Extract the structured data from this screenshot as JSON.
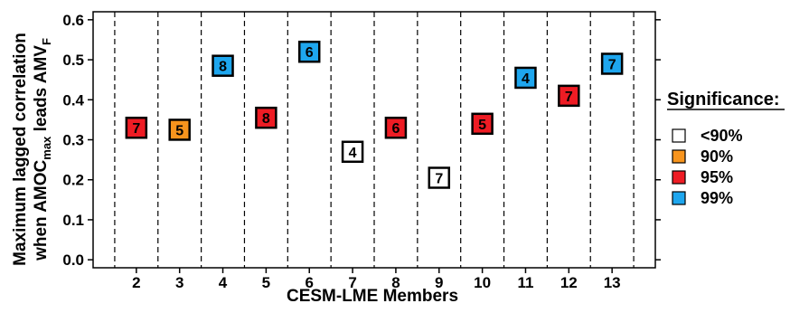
{
  "chart_data": {
    "type": "scatter",
    "title": "",
    "ylabel_line1": "Maximum lagged correlation",
    "ylabel_line2_prefix": "when AMOC",
    "ylabel_line2_sub1": "max",
    "ylabel_line2_mid": " leads AMV",
    "ylabel_line2_sub2": "F",
    "xlabel": "CESM-LME Members",
    "ylim": [
      -0.02,
      0.62
    ],
    "yticks": [
      0.0,
      0.1,
      0.2,
      0.3,
      0.4,
      0.5,
      0.6
    ],
    "ytick_labels": [
      "0.0",
      "0.1",
      "0.2",
      "0.3",
      "0.4",
      "0.5",
      "0.6"
    ],
    "categories": [
      "2",
      "3",
      "4",
      "5",
      "6",
      "7",
      "8",
      "9",
      "10",
      "11",
      "12",
      "13"
    ],
    "values": [
      0.33,
      0.325,
      0.485,
      0.355,
      0.52,
      0.27,
      0.33,
      0.205,
      0.34,
      0.455,
      0.41,
      0.49
    ],
    "markers": [
      "7",
      "5",
      "8",
      "8",
      "6",
      "4",
      "6",
      "7",
      "5",
      "4",
      "7",
      "7"
    ],
    "significance": [
      "95%",
      "90%",
      "99%",
      "95%",
      "99%",
      "<90%",
      "95%",
      "<90%",
      "95%",
      "99%",
      "95%",
      "99%"
    ],
    "legend": {
      "title": "Significance:",
      "placement": "right",
      "entries": [
        {
          "label": "<90%",
          "color": "#ffffff"
        },
        {
          "label": "90%",
          "color": "#f7941d"
        },
        {
          "label": "95%",
          "color": "#ee1c24"
        },
        {
          "label": "99%",
          "color": "#1ea6ee"
        }
      ]
    },
    "grid": "dashed vertical separators between members"
  }
}
